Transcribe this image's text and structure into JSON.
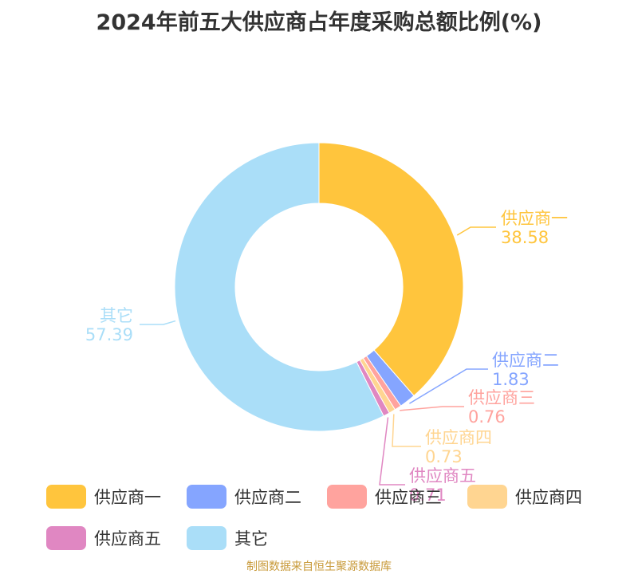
{
  "chart_data": {
    "type": "pie",
    "title": "2024年前五大供应商占年度采购总额比例(%)",
    "categories": [
      "供应商一",
      "供应商二",
      "供应商三",
      "供应商四",
      "供应商五",
      "其它"
    ],
    "values": [
      38.58,
      1.83,
      0.76,
      0.73,
      0.71,
      57.39
    ],
    "value_labels": [
      "38.58",
      "1.83",
      "0.76",
      "0.73",
      "0.71",
      "57.39"
    ],
    "colors": [
      "#ffc53d",
      "#85a5ff",
      "#ffa39e",
      "#ffd591",
      "#e087c2",
      "#aadef8"
    ],
    "legend": "bottom"
  },
  "source": "制图数据来自恒生聚源数据库"
}
